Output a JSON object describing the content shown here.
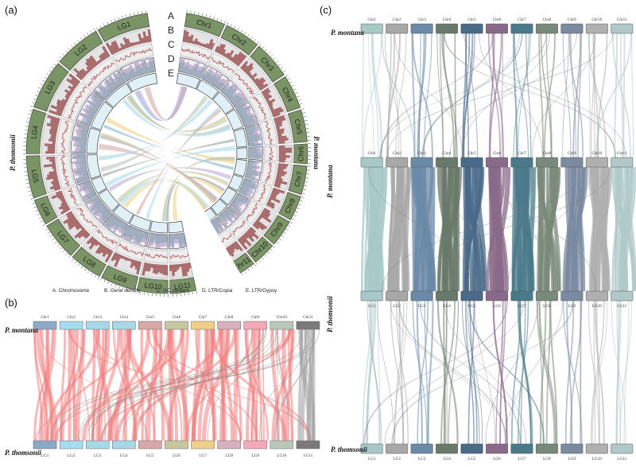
{
  "figure": {
    "panels": {
      "a": "(a)",
      "b": "(b)",
      "c": "(c)"
    },
    "ring_letters": [
      "A",
      "B",
      "C",
      "D",
      "E"
    ],
    "legend": [
      "A. Chromosome",
      "B. Gene density",
      "C. GC content",
      "D. LTR/Copia",
      "E. LTR/Gypsy"
    ],
    "species": {
      "montana": "P. montana",
      "thomsonii": "P. thomsonii"
    },
    "chr_labels": [
      "Chr1",
      "Chr2",
      "Chr3",
      "Chr4",
      "Chr5",
      "Chr6",
      "Chr7",
      "Chr8",
      "Chr9",
      "Chr10",
      "Chr11"
    ],
    "lg_labels": [
      "LG1",
      "LG2",
      "LG3",
      "LG4",
      "LG5",
      "LG6",
      "LG7",
      "LG8",
      "LG9",
      "LG10",
      "LG11"
    ],
    "colors": {
      "chromosome_ring": "#7a9466",
      "gene_density": "#a86a6a",
      "gc_line": "#b14a4a",
      "copia": "#c4b4d4",
      "gypsy": "#8ea0b4",
      "synteny_b": "#f08080",
      "panel_b_chr": [
        "#8aaac8",
        "#a6dcef",
        "#a8d8e8",
        "#a8d8e8",
        "#d8a8a8",
        "#c8c8a0",
        "#f0d088",
        "#d8b0c0",
        "#f4a8b8",
        "#b8c8b8",
        "#7a7a7a"
      ],
      "panel_c_chr": [
        "#a8c8c8",
        "#a8a8a8",
        "#6a8aa8",
        "#6a7a6a",
        "#4a6a8a",
        "#8a6a8a",
        "#4a7a8a",
        "#7a8a7a",
        "#7a8aa0",
        "#b0b0b0",
        "#b0c8c8"
      ]
    },
    "tick_scale_labels": [
      "0Mb",
      "10Mb",
      "20Mb",
      "30Mb",
      "40Mb",
      "50Mb",
      "60Mb",
      "70Mb"
    ]
  }
}
